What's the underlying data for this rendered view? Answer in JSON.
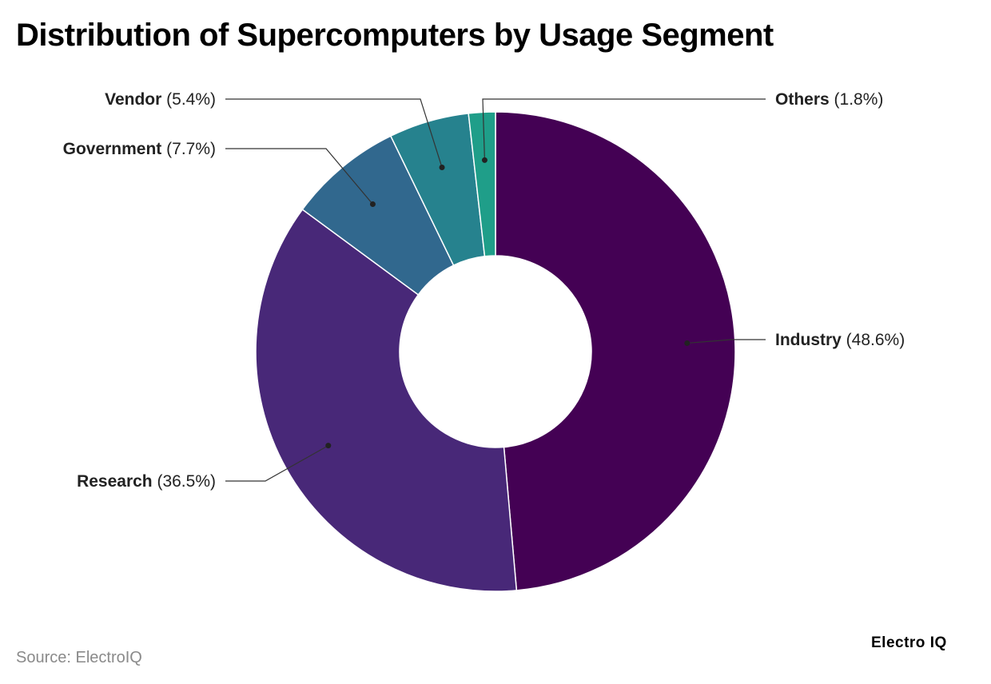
{
  "chart_data": {
    "type": "pie",
    "title": "Distribution of Supercomputers by Usage Segment",
    "donut": true,
    "slices": [
      {
        "name": "Industry",
        "value": 48.6,
        "label": "(48.6%)",
        "color": "#440154"
      },
      {
        "name": "Research",
        "value": 36.5,
        "label": "(36.5%)",
        "color": "#482878"
      },
      {
        "name": "Government",
        "value": 7.7,
        "label": "(7.7%)",
        "color": "#31688e"
      },
      {
        "name": "Vendor",
        "value": 5.4,
        "label": "(5.4%)",
        "color": "#26828e"
      },
      {
        "name": "Others",
        "value": 1.8,
        "label": "(1.8%)",
        "color": "#1f9e89"
      }
    ],
    "legend": "none"
  },
  "footer": {
    "source": "Source: ElectroIQ",
    "brand": "Electro IQ"
  }
}
